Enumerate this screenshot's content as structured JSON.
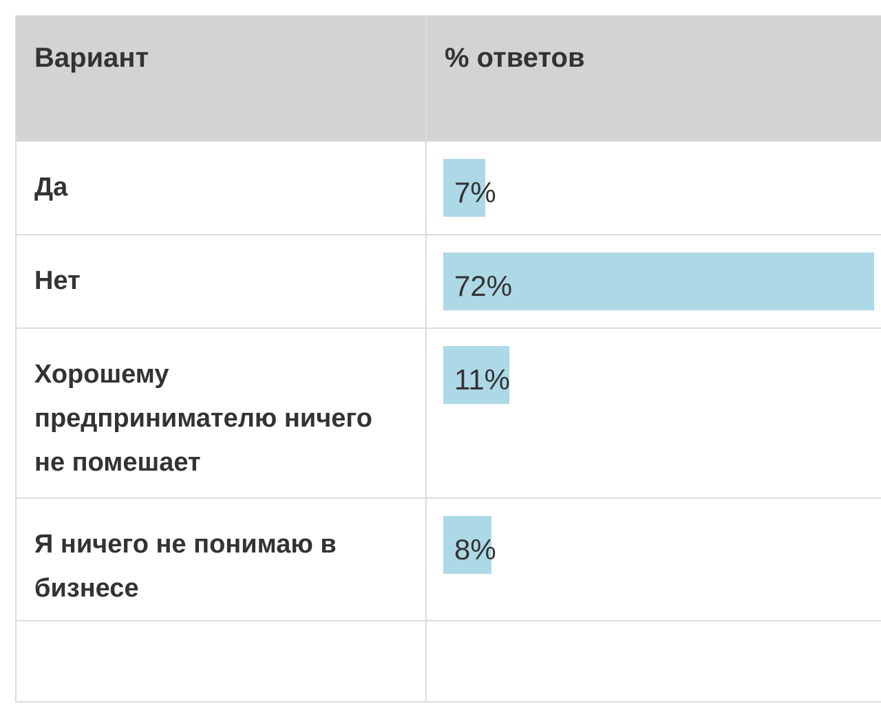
{
  "poll": {
    "header": {
      "option": "Вариант",
      "percent": "% ответов"
    },
    "colors": {
      "header_bg": "#d3d3d3",
      "bar": "#add8e6",
      "border": "#dcdcdc",
      "text": "#333333"
    },
    "rows": [
      {
        "option": "Да",
        "percent_label": "7%",
        "percent": 7
      },
      {
        "option": "Нет",
        "percent_label": "72%",
        "percent": 72
      },
      {
        "option": "Хорошему предпринимателю ничего не помешает",
        "percent_label": "11%",
        "percent": 11
      },
      {
        "option": "Я ничего не понимаю в бизнесе",
        "percent_label": "8%",
        "percent": 8
      }
    ]
  }
}
